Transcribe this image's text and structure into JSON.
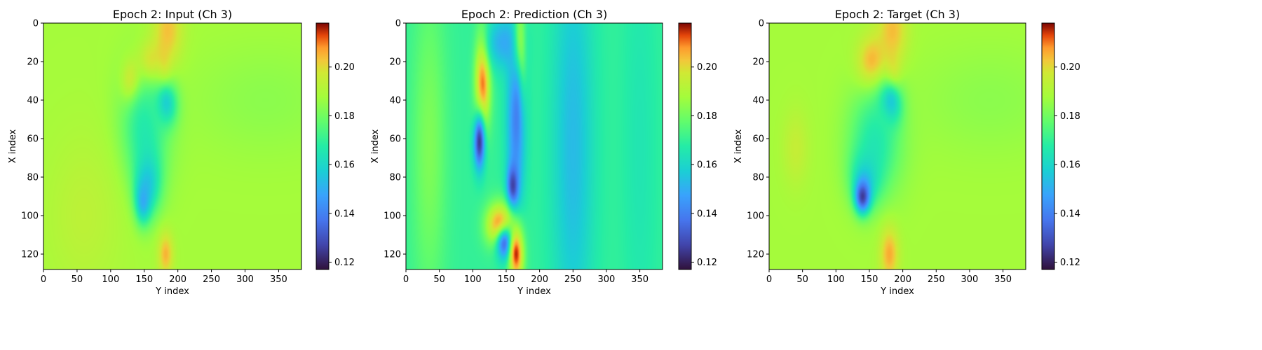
{
  "chart_data": [
    {
      "type": "heatmap",
      "title": "Epoch 2: Input (Ch 3)",
      "xlabel": "Y index",
      "ylabel": "X index",
      "xlim": [
        0,
        384
      ],
      "ylim": [
        128,
        0
      ],
      "xticks": [
        0,
        50,
        100,
        150,
        200,
        250,
        300,
        350
      ],
      "yticks": [
        0,
        20,
        40,
        60,
        80,
        100,
        120
      ],
      "colorbar": {
        "colormap": "turbo",
        "range": [
          0.117,
          0.218
        ],
        "ticks": [
          0.12,
          0.14,
          0.16,
          0.18,
          0.2
        ],
        "tick_labels": [
          "0.12",
          "0.14",
          "0.16",
          "0.18",
          "0.20"
        ]
      },
      "background_value": 0.188,
      "features": [
        {
          "y": 5,
          "x": 185,
          "sy": 14,
          "sx": 16,
          "value": 0.205
        },
        {
          "y": 22,
          "x": 160,
          "sy": 8,
          "sx": 14,
          "value": 0.212
        },
        {
          "y": 32,
          "x": 132,
          "sy": 8,
          "sx": 10,
          "value": 0.216
        },
        {
          "y": 28,
          "x": 178,
          "sy": 10,
          "sx": 8,
          "value": 0.212
        },
        {
          "y": 42,
          "x": 182,
          "sy": 8,
          "sx": 12,
          "value": 0.145
        },
        {
          "y": 55,
          "x": 150,
          "sy": 22,
          "sx": 26,
          "value": 0.165
        },
        {
          "y": 82,
          "x": 155,
          "sy": 12,
          "sx": 14,
          "value": 0.155
        },
        {
          "y": 92,
          "x": 148,
          "sy": 8,
          "sx": 8,
          "value": 0.145
        },
        {
          "y": 120,
          "x": 182,
          "sy": 8,
          "sx": 8,
          "value": 0.205
        },
        {
          "y": 40,
          "x": 330,
          "sy": 20,
          "sx": 80,
          "value": 0.184
        },
        {
          "y": 100,
          "x": 60,
          "sy": 30,
          "sx": 40,
          "value": 0.193
        }
      ]
    },
    {
      "type": "heatmap",
      "title": "Epoch 2: Prediction (Ch 3)",
      "xlabel": "Y index",
      "ylabel": "X index",
      "xlim": [
        0,
        384
      ],
      "ylim": [
        128,
        0
      ],
      "xticks": [
        0,
        50,
        100,
        150,
        200,
        250,
        300,
        350
      ],
      "yticks": [
        0,
        20,
        40,
        60,
        80,
        100,
        120
      ],
      "colorbar": {
        "colormap": "turbo",
        "range": [
          0.117,
          0.218
        ],
        "ticks": [
          0.12,
          0.14,
          0.16,
          0.18,
          0.2
        ],
        "tick_labels": [
          "0.12",
          "0.14",
          "0.16",
          "0.18",
          "0.20"
        ]
      },
      "background_value": 0.17,
      "features": [
        {
          "y": 64,
          "x": 35,
          "sy": 60,
          "sx": 18,
          "value": 0.182
        },
        {
          "y": 64,
          "x": 250,
          "sy": 80,
          "sx": 22,
          "value": 0.153
        },
        {
          "y": 64,
          "x": 350,
          "sy": 80,
          "sx": 18,
          "value": 0.165
        },
        {
          "y": 30,
          "x": 115,
          "sy": 18,
          "sx": 8,
          "value": 0.212
        },
        {
          "y": 62,
          "x": 110,
          "sy": 10,
          "sx": 6,
          "value": 0.125
        },
        {
          "y": 10,
          "x": 145,
          "sy": 10,
          "sx": 18,
          "value": 0.15
        },
        {
          "y": 20,
          "x": 170,
          "sy": 20,
          "sx": 6,
          "value": 0.21
        },
        {
          "y": 50,
          "x": 165,
          "sy": 30,
          "sx": 10,
          "value": 0.14
        },
        {
          "y": 85,
          "x": 160,
          "sy": 8,
          "sx": 6,
          "value": 0.125
        },
        {
          "y": 105,
          "x": 140,
          "sy": 8,
          "sx": 14,
          "value": 0.212
        },
        {
          "y": 115,
          "x": 150,
          "sy": 6,
          "sx": 10,
          "value": 0.13
        },
        {
          "y": 120,
          "x": 165,
          "sy": 10,
          "sx": 8,
          "value": 0.215
        }
      ]
    },
    {
      "type": "heatmap",
      "title": "Epoch 2: Target (Ch 3)",
      "xlabel": "Y index",
      "ylabel": "X index",
      "xlim": [
        0,
        384
      ],
      "ylim": [
        128,
        0
      ],
      "xticks": [
        0,
        50,
        100,
        150,
        200,
        250,
        300,
        350
      ],
      "yticks": [
        0,
        20,
        40,
        60,
        80,
        100,
        120
      ],
      "colorbar": {
        "colormap": "turbo",
        "range": [
          0.117,
          0.218
        ],
        "ticks": [
          0.12,
          0.14,
          0.16,
          0.18,
          0.2
        ],
        "tick_labels": [
          "0.12",
          "0.14",
          "0.16",
          "0.18",
          "0.20"
        ]
      },
      "background_value": 0.188,
      "features": [
        {
          "y": 5,
          "x": 185,
          "sy": 14,
          "sx": 16,
          "value": 0.205
        },
        {
          "y": 22,
          "x": 155,
          "sy": 10,
          "sx": 16,
          "value": 0.212
        },
        {
          "y": 30,
          "x": 185,
          "sy": 8,
          "sx": 8,
          "value": 0.214
        },
        {
          "y": 42,
          "x": 182,
          "sy": 8,
          "sx": 12,
          "value": 0.138
        },
        {
          "y": 60,
          "x": 160,
          "sy": 20,
          "sx": 28,
          "value": 0.165
        },
        {
          "y": 80,
          "x": 145,
          "sy": 10,
          "sx": 16,
          "value": 0.158
        },
        {
          "y": 90,
          "x": 140,
          "sy": 6,
          "sx": 8,
          "value": 0.125
        },
        {
          "y": 120,
          "x": 180,
          "sy": 10,
          "sx": 10,
          "value": 0.206
        },
        {
          "y": 40,
          "x": 330,
          "sy": 20,
          "sx": 80,
          "value": 0.184
        },
        {
          "y": 65,
          "x": 40,
          "sy": 14,
          "sx": 14,
          "value": 0.195
        }
      ]
    }
  ]
}
